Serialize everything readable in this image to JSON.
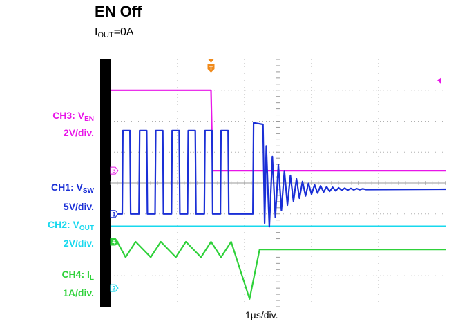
{
  "header": {
    "title": "EN Off",
    "subtitle_main": "I",
    "subtitle_sub": "OUT",
    "subtitle_tail": "=0A"
  },
  "channels": [
    {
      "id": "ch3",
      "name_main": "CH3: V",
      "name_sub": "EN",
      "scale": "2V/div.",
      "color": "#e815e8",
      "marker": "3"
    },
    {
      "id": "ch1",
      "name_main": "CH1: V",
      "name_sub": "SW",
      "scale": "5V/div.",
      "color": "#1a2fd6",
      "marker": "1"
    },
    {
      "id": "ch2",
      "name_main": "CH2: V",
      "name_sub": "OUT",
      "scale": "2V/div.",
      "color": "#18d8ee",
      "marker": "2"
    },
    {
      "id": "ch4",
      "name_main": "CH4: I",
      "name_sub": "L",
      "scale": "1A/div.",
      "color": "#2fd13a",
      "marker": "4"
    }
  ],
  "trigger_marker": "T",
  "timebase": "1µs/div.",
  "chart_data": {
    "type": "line",
    "title": "EN Off",
    "subtitle": "IOUT=0A",
    "xlabel": "1µs/div.",
    "grid": true,
    "x_divisions": 10,
    "y_divisions": 8,
    "series": [
      {
        "name": "CH3: VEN",
        "scale": "2V/div.",
        "description": "EN high, steps low at trigger",
        "points": [
          [
            0,
            7.0
          ],
          [
            3.0,
            7.0
          ],
          [
            3.05,
            4.4
          ],
          [
            10,
            4.4
          ]
        ]
      },
      {
        "name": "CH1: VSW",
        "scale": "5V/div.",
        "description": "switching pulses, then ringing after EN off",
        "pulse_starts": [
          0.35,
          0.85,
          1.33,
          1.82,
          2.3,
          2.8,
          3.28
        ],
        "pulse_width": 0.25,
        "high": 5.7,
        "low": 3.0,
        "burst_start": 4.25,
        "burst_end": 4.55
      },
      {
        "name": "CH2: VOUT",
        "scale": "2V/div.",
        "points": [
          [
            0,
            2.6
          ],
          [
            10,
            2.6
          ]
        ]
      },
      {
        "name": "CH4: IL",
        "scale": "1A/div.",
        "description": "triangular ripple, ramp down then settle",
        "points": [
          [
            0,
            2.1
          ],
          [
            0.2,
            2.1
          ],
          [
            0.45,
            1.6
          ],
          [
            0.75,
            2.1
          ],
          [
            1.2,
            1.6
          ],
          [
            1.5,
            2.1
          ],
          [
            1.95,
            1.6
          ],
          [
            2.25,
            2.1
          ],
          [
            2.7,
            1.6
          ],
          [
            3.0,
            2.1
          ],
          [
            3.3,
            1.6
          ],
          [
            3.6,
            2.1
          ],
          [
            4.15,
            0.25
          ],
          [
            4.45,
            1.85
          ],
          [
            10,
            1.85
          ]
        ]
      }
    ]
  }
}
